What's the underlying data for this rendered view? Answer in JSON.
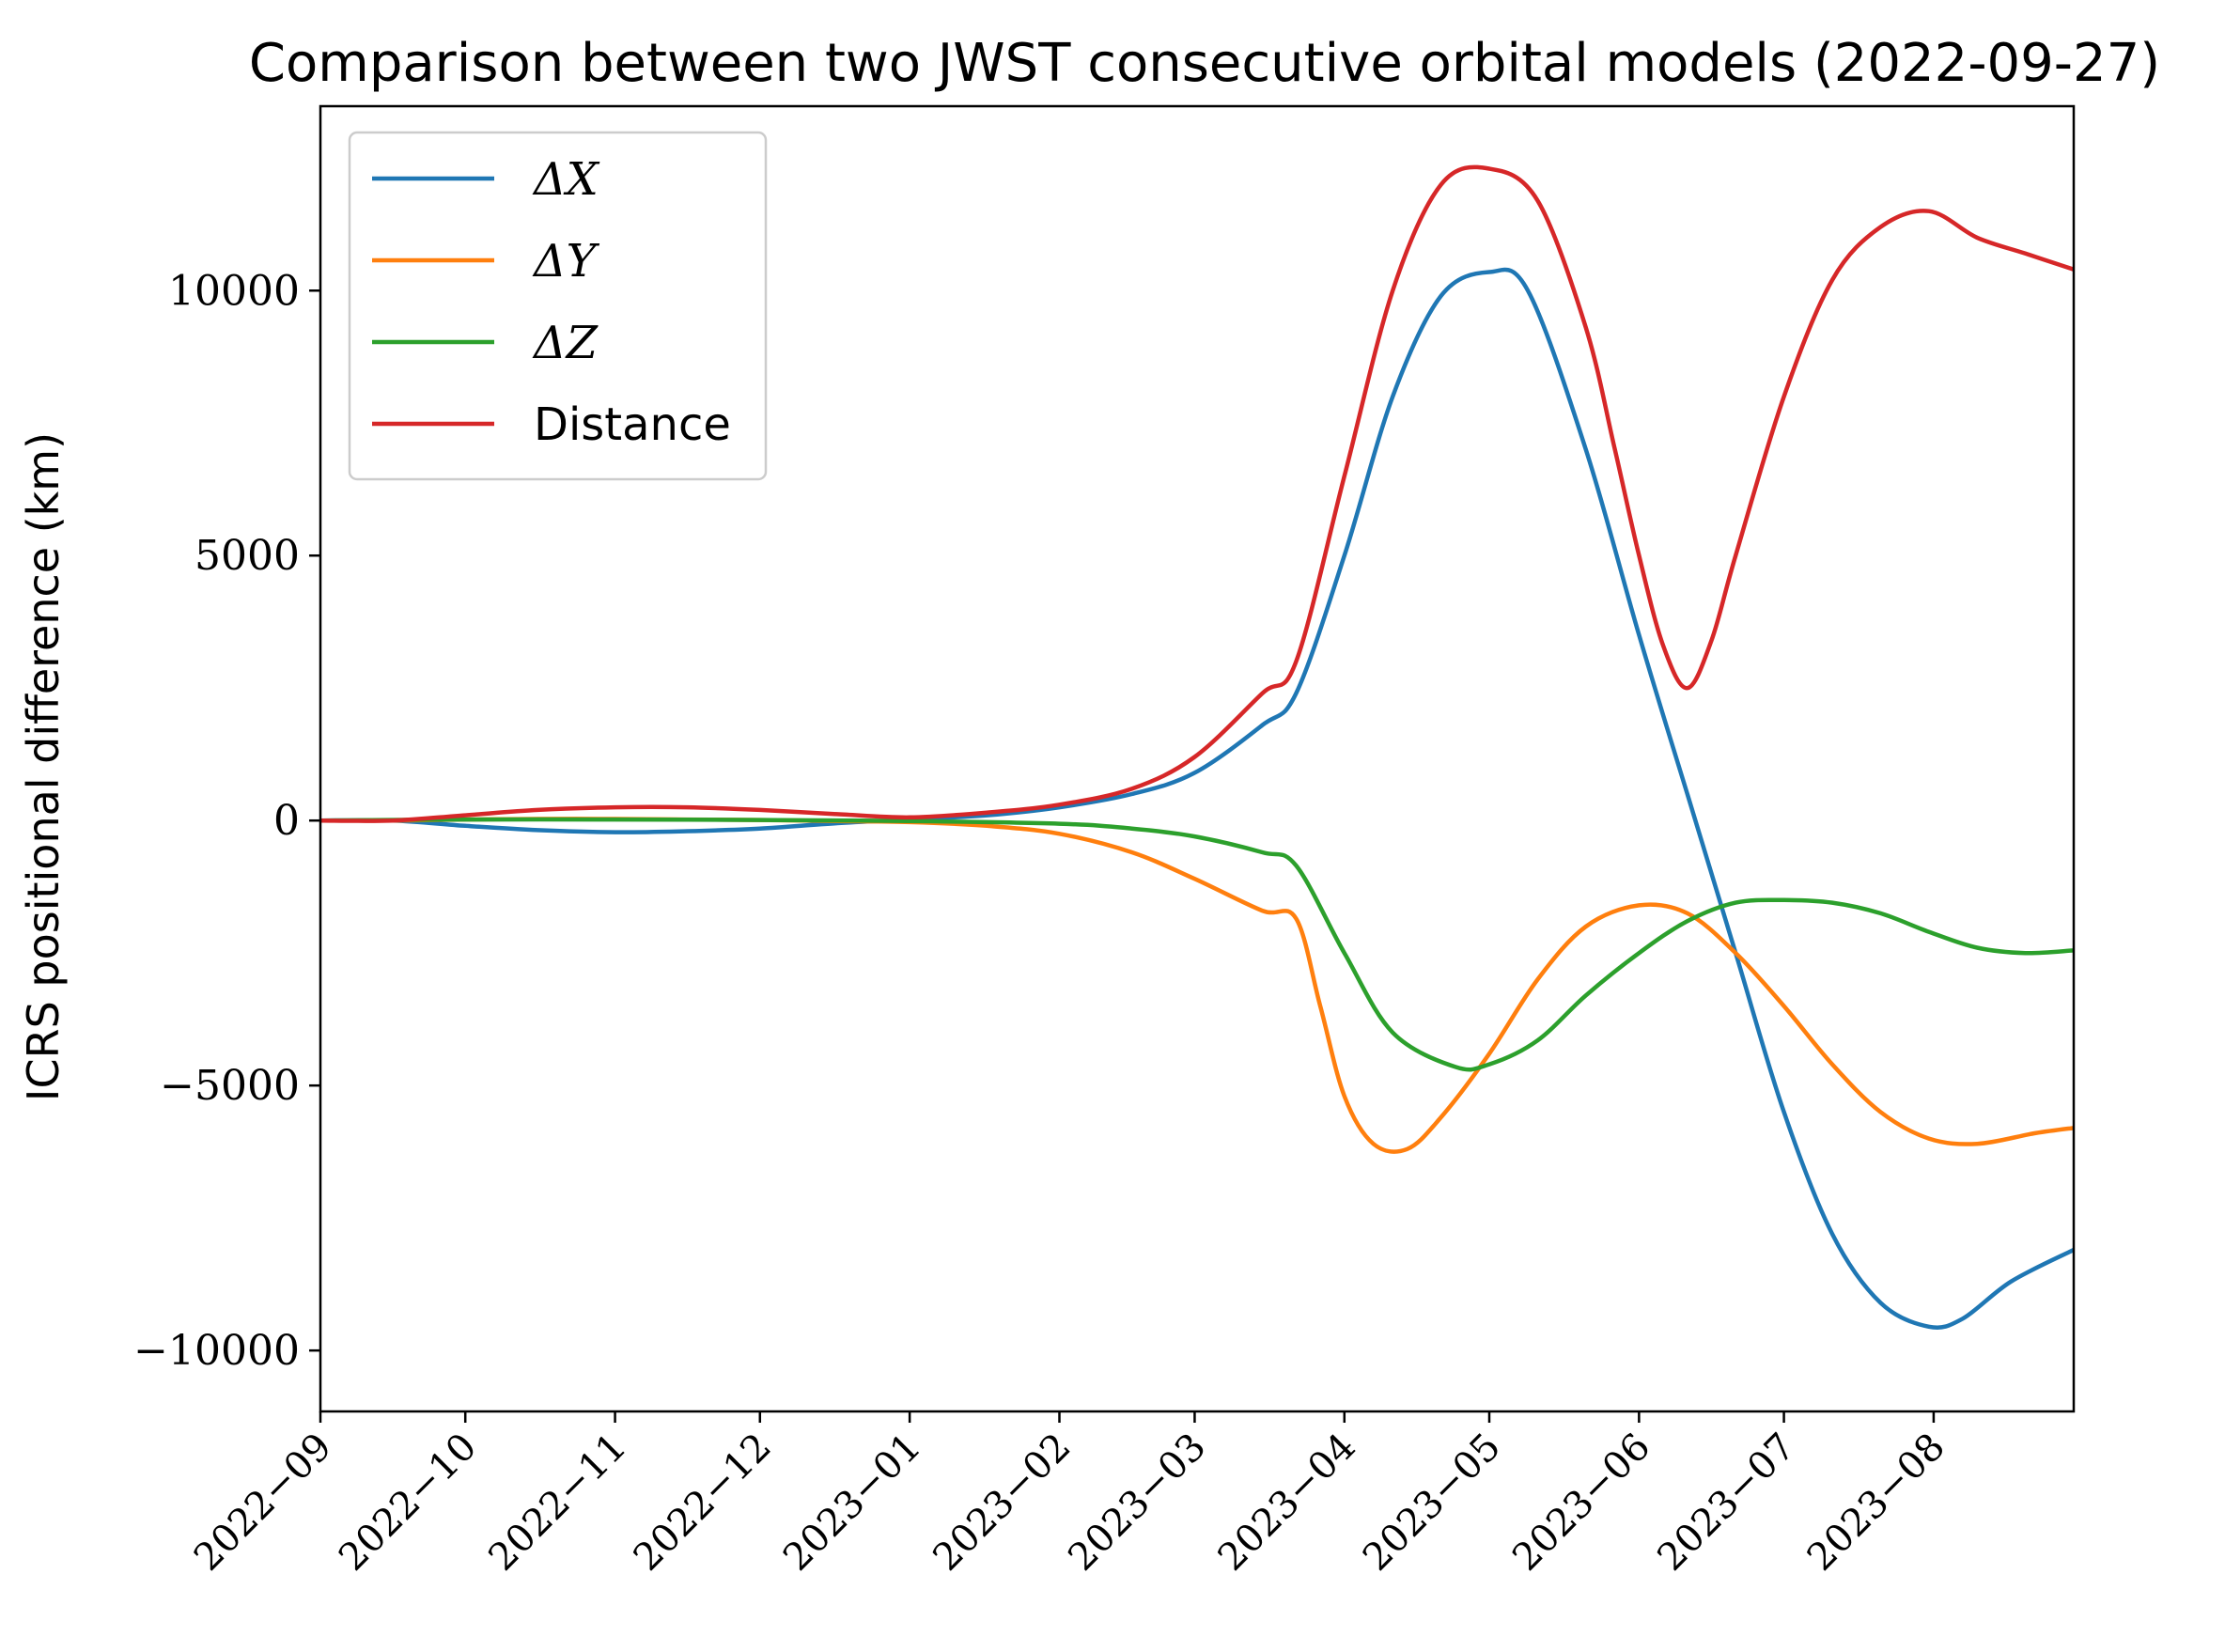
{
  "chart_data": {
    "type": "line",
    "title": "Comparison between two JWST consecutive orbital models (2022-09-27)",
    "xlabel": "",
    "ylabel": "ICRS positional difference (km)",
    "x_unit": "days since 2022-09-01",
    "xlim": [
      0,
      363
    ],
    "ylim": [
      -11150,
      13480
    ],
    "yticks": [
      {
        "value": -10000,
        "label": "−10000"
      },
      {
        "value": -5000,
        "label": "−5000"
      },
      {
        "value": 0,
        "label": "0"
      },
      {
        "value": 5000,
        "label": "5000"
      },
      {
        "value": 10000,
        "label": "10000"
      }
    ],
    "xticks": [
      {
        "value": 0,
        "label": "2022−09"
      },
      {
        "value": 30,
        "label": "2022−10"
      },
      {
        "value": 61,
        "label": "2022−11"
      },
      {
        "value": 91,
        "label": "2022−12"
      },
      {
        "value": 122,
        "label": "2023−01"
      },
      {
        "value": 153,
        "label": "2023−02"
      },
      {
        "value": 181,
        "label": "2023−03"
      },
      {
        "value": 212,
        "label": "2023−04"
      },
      {
        "value": 242,
        "label": "2023−05"
      },
      {
        "value": 273,
        "label": "2023−06"
      },
      {
        "value": 303,
        "label": "2023−07"
      },
      {
        "value": 334,
        "label": "2023−08"
      }
    ],
    "legend_position": "top-left",
    "grid": false,
    "series": [
      {
        "name": "ΔX",
        "color": "#1f77b4",
        "points": [
          [
            0,
            0
          ],
          [
            15,
            0
          ],
          [
            30,
            -100
          ],
          [
            45,
            -180
          ],
          [
            61,
            -220
          ],
          [
            76,
            -200
          ],
          [
            91,
            -150
          ],
          [
            107,
            -50
          ],
          [
            122,
            20
          ],
          [
            138,
            100
          ],
          [
            153,
            250
          ],
          [
            168,
            500
          ],
          [
            181,
            900
          ],
          [
            195,
            1800
          ],
          [
            202,
            2400
          ],
          [
            212,
            5000
          ],
          [
            222,
            8000
          ],
          [
            232,
            9900
          ],
          [
            242,
            10350
          ],
          [
            250,
            10000
          ],
          [
            262,
            7000
          ],
          [
            273,
            3500
          ],
          [
            283,
            500
          ],
          [
            293,
            -2500
          ],
          [
            303,
            -5500
          ],
          [
            313,
            -7800
          ],
          [
            323,
            -9100
          ],
          [
            333,
            -9550
          ],
          [
            340,
            -9400
          ],
          [
            350,
            -8700
          ],
          [
            363,
            -8100
          ]
        ]
      },
      {
        "name": "ΔY",
        "color": "#ff7f0e",
        "points": [
          [
            0,
            0
          ],
          [
            15,
            0
          ],
          [
            30,
            20
          ],
          [
            45,
            30
          ],
          [
            61,
            30
          ],
          [
            76,
            20
          ],
          [
            91,
            10
          ],
          [
            107,
            -10
          ],
          [
            122,
            -30
          ],
          [
            138,
            -100
          ],
          [
            153,
            -250
          ],
          [
            168,
            -600
          ],
          [
            181,
            -1100
          ],
          [
            195,
            -1700
          ],
          [
            202,
            -1850
          ],
          [
            207,
            -3500
          ],
          [
            212,
            -5200
          ],
          [
            218,
            -6100
          ],
          [
            225,
            -6200
          ],
          [
            232,
            -5600
          ],
          [
            242,
            -4400
          ],
          [
            252,
            -3000
          ],
          [
            262,
            -2000
          ],
          [
            273,
            -1600
          ],
          [
            283,
            -1750
          ],
          [
            293,
            -2500
          ],
          [
            303,
            -3500
          ],
          [
            313,
            -4600
          ],
          [
            323,
            -5500
          ],
          [
            333,
            -6000
          ],
          [
            343,
            -6100
          ],
          [
            355,
            -5900
          ],
          [
            363,
            -5800
          ]
        ]
      },
      {
        "name": "ΔZ",
        "color": "#2ca02c",
        "points": [
          [
            0,
            0
          ],
          [
            30,
            20
          ],
          [
            61,
            20
          ],
          [
            91,
            10
          ],
          [
            122,
            -10
          ],
          [
            153,
            -60
          ],
          [
            168,
            -150
          ],
          [
            181,
            -300
          ],
          [
            195,
            -600
          ],
          [
            202,
            -850
          ],
          [
            212,
            -2500
          ],
          [
            222,
            -4000
          ],
          [
            235,
            -4650
          ],
          [
            242,
            -4600
          ],
          [
            252,
            -4150
          ],
          [
            262,
            -3300
          ],
          [
            273,
            -2500
          ],
          [
            283,
            -1900
          ],
          [
            293,
            -1550
          ],
          [
            303,
            -1500
          ],
          [
            313,
            -1550
          ],
          [
            323,
            -1750
          ],
          [
            333,
            -2100
          ],
          [
            343,
            -2400
          ],
          [
            353,
            -2500
          ],
          [
            363,
            -2450
          ]
        ]
      },
      {
        "name": "Distance",
        "color": "#d62728",
        "points": [
          [
            0,
            0
          ],
          [
            15,
            0
          ],
          [
            30,
            100
          ],
          [
            45,
            200
          ],
          [
            61,
            250
          ],
          [
            76,
            250
          ],
          [
            91,
            200
          ],
          [
            107,
            120
          ],
          [
            122,
            60
          ],
          [
            138,
            150
          ],
          [
            153,
            300
          ],
          [
            168,
            600
          ],
          [
            181,
            1200
          ],
          [
            195,
            2400
          ],
          [
            202,
            3000
          ],
          [
            212,
            6500
          ],
          [
            222,
            10000
          ],
          [
            232,
            12000
          ],
          [
            242,
            12300
          ],
          [
            252,
            11700
          ],
          [
            262,
            9300
          ],
          [
            268,
            7000
          ],
          [
            273,
            5000
          ],
          [
            278,
            3300
          ],
          [
            283,
            2500
          ],
          [
            288,
            3400
          ],
          [
            293,
            5000
          ],
          [
            303,
            8000
          ],
          [
            313,
            10200
          ],
          [
            323,
            11200
          ],
          [
            333,
            11500
          ],
          [
            343,
            11000
          ],
          [
            353,
            10700
          ],
          [
            363,
            10400
          ]
        ]
      }
    ]
  }
}
